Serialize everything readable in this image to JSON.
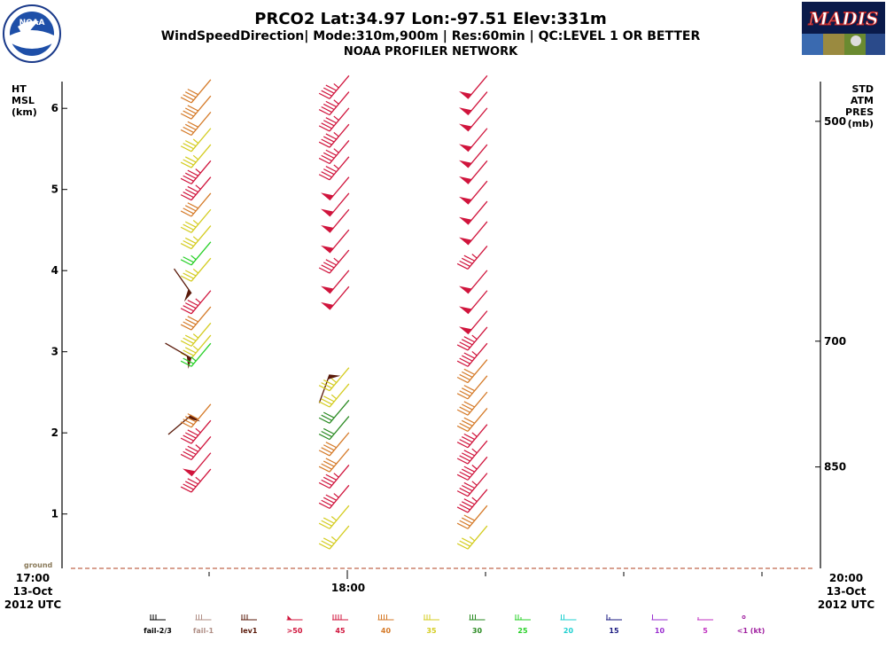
{
  "header": {
    "title": "PRCO2  Lat:34.97 Lon:-97.51 Elev:331m",
    "subtitle": "WindSpeedDirection| Mode:310m,900m | Res:60min |  QC:LEVEL 1 OR BETTER",
    "network": "NOAA PROFILER NETWORK",
    "noaa_logo_text": "NOAA",
    "madis_logo_text": "MADIS"
  },
  "chart_data": {
    "type": "wind-barbs",
    "left_axis": {
      "label_lines": [
        "HT",
        "MSL",
        "(km)"
      ],
      "ticks": [
        1,
        2,
        3,
        4,
        5,
        6
      ],
      "range_km": [
        0.33,
        6.35
      ]
    },
    "right_axis": {
      "label_lines": [
        "STD",
        "ATM",
        "PRES",
        "(mb)"
      ],
      "ticks": [
        {
          "label": "500",
          "height_km": 5.84
        },
        {
          "label": "700",
          "height_km": 3.13
        },
        {
          "label": "850",
          "height_km": 1.58
        }
      ]
    },
    "ground_label": "ground",
    "time_axis": {
      "start_lines": [
        "17:00",
        "13-Oct",
        "2012 UTC"
      ],
      "end_lines": [
        "20:00",
        "13-Oct",
        "2012 UTC"
      ],
      "middle_label": "18:00",
      "range_hours": [
        17.0,
        20.0
      ],
      "minor_ticks_hours": [
        17.5,
        18.5,
        19.0,
        19.5
      ]
    },
    "profiles": [
      {
        "time": 17.5,
        "barbs": [
          {
            "h": 6.2,
            "speed": 40
          },
          {
            "h": 6.0,
            "speed": 40
          },
          {
            "h": 5.8,
            "speed": 40
          },
          {
            "h": 5.6,
            "speed": 35
          },
          {
            "h": 5.4,
            "speed": 35
          },
          {
            "h": 5.2,
            "speed": 45
          },
          {
            "h": 5.0,
            "speed": 45
          },
          {
            "h": 4.8,
            "speed": 40
          },
          {
            "h": 4.6,
            "speed": 35
          },
          {
            "h": 4.4,
            "speed": 35
          },
          {
            "h": 4.2,
            "speed": 25
          },
          {
            "h": 4.0,
            "speed": 35
          },
          {
            "h": 3.85,
            "speed": 0,
            "cat": "lev1",
            "dir": 325
          },
          {
            "h": 3.6,
            "speed": 45
          },
          {
            "h": 3.4,
            "speed": 40
          },
          {
            "h": 3.2,
            "speed": 35
          },
          {
            "h": 3.05,
            "speed": 35
          },
          {
            "h": 3.05,
            "speed": 0,
            "cat": "lev1",
            "dir": 300
          },
          {
            "h": 2.95,
            "speed": 25
          },
          {
            "h": 2.35,
            "speed": 0,
            "cat": "lev1",
            "dir": 230
          },
          {
            "h": 2.2,
            "speed": 40
          },
          {
            "h": 2.0,
            "speed": 45
          },
          {
            "h": 1.8,
            "speed": 45
          },
          {
            "h": 1.6,
            "speed": 50
          },
          {
            "h": 1.4,
            "speed": 45
          }
        ]
      },
      {
        "time": 18.0,
        "barbs": [
          {
            "h": 6.25,
            "speed": 45
          },
          {
            "h": 6.05,
            "speed": 45
          },
          {
            "h": 5.85,
            "speed": 45
          },
          {
            "h": 5.65,
            "speed": 45
          },
          {
            "h": 5.45,
            "speed": 45
          },
          {
            "h": 5.25,
            "speed": 45
          },
          {
            "h": 5.0,
            "speed": 50
          },
          {
            "h": 4.8,
            "speed": 50
          },
          {
            "h": 4.6,
            "speed": 50
          },
          {
            "h": 4.35,
            "speed": 50
          },
          {
            "h": 4.1,
            "speed": 45
          },
          {
            "h": 3.85,
            "speed": 50
          },
          {
            "h": 3.65,
            "speed": 50
          },
          {
            "h": 2.85,
            "speed": 0,
            "cat": "lev1",
            "dir": 200
          },
          {
            "h": 2.65,
            "speed": 35
          },
          {
            "h": 2.45,
            "speed": 35
          },
          {
            "h": 2.25,
            "speed": 30
          },
          {
            "h": 2.05,
            "speed": 30
          },
          {
            "h": 1.85,
            "speed": 40
          },
          {
            "h": 1.65,
            "speed": 40
          },
          {
            "h": 1.45,
            "speed": 45
          },
          {
            "h": 1.2,
            "speed": 45
          },
          {
            "h": 0.95,
            "speed": 35
          },
          {
            "h": 0.7,
            "speed": 35
          }
        ]
      },
      {
        "time": 18.5,
        "barbs": [
          {
            "h": 6.25,
            "speed": 50
          },
          {
            "h": 6.05,
            "speed": 50
          },
          {
            "h": 5.85,
            "speed": 50
          },
          {
            "h": 5.6,
            "speed": 50
          },
          {
            "h": 5.4,
            "speed": 50
          },
          {
            "h": 5.2,
            "speed": 50
          },
          {
            "h": 4.95,
            "speed": 50
          },
          {
            "h": 4.7,
            "speed": 50
          },
          {
            "h": 4.45,
            "speed": 50
          },
          {
            "h": 4.15,
            "speed": 45
          },
          {
            "h": 3.85,
            "speed": 50
          },
          {
            "h": 3.6,
            "speed": 50
          },
          {
            "h": 3.35,
            "speed": 50
          },
          {
            "h": 3.15,
            "speed": 45
          },
          {
            "h": 2.95,
            "speed": 45
          },
          {
            "h": 2.75,
            "speed": 40
          },
          {
            "h": 2.55,
            "speed": 40
          },
          {
            "h": 2.35,
            "speed": 40
          },
          {
            "h": 2.15,
            "speed": 40
          },
          {
            "h": 1.95,
            "speed": 45
          },
          {
            "h": 1.75,
            "speed": 45
          },
          {
            "h": 1.55,
            "speed": 45
          },
          {
            "h": 1.35,
            "speed": 45
          },
          {
            "h": 1.15,
            "speed": 45
          },
          {
            "h": 0.95,
            "speed": 40
          },
          {
            "h": 0.7,
            "speed": 35
          }
        ]
      }
    ]
  },
  "legend": [
    {
      "label": "fail-2/3",
      "color": "#000000",
      "sym": "f3"
    },
    {
      "label": "fail-1",
      "color": "#b08f86",
      "sym": "f3"
    },
    {
      "label": "lev1",
      "color": "#5a1a0a",
      "sym": "f3"
    },
    {
      "label": ">50",
      "color": "#d0143c",
      "sym": "pen"
    },
    {
      "label": "45",
      "color": "#d0143c",
      "sym": "f4"
    },
    {
      "label": "40",
      "color": "#d57a28",
      "sym": "f4"
    },
    {
      "label": "35",
      "color": "#d4cc20",
      "sym": "f3"
    },
    {
      "label": "30",
      "color": "#2a8a22",
      "sym": "f3"
    },
    {
      "label": "25",
      "color": "#28d028",
      "sym": "f2h"
    },
    {
      "label": "20",
      "color": "#20d0d0",
      "sym": "f2"
    },
    {
      "label": "15",
      "color": "#1a1a80",
      "sym": "f1h"
    },
    {
      "label": "10",
      "color": "#9a30d0",
      "sym": "f1"
    },
    {
      "label": "5",
      "color": "#c030c0",
      "sym": "h"
    },
    {
      "label": "<1 (kt)",
      "color": "#a020a0",
      "sym": "dot"
    }
  ],
  "speed_colors": {
    "lev1": "#5a1a0a",
    "50": "#d0143c",
    "45": "#d0143c",
    "40": "#d57a28",
    "35": "#d4cc20",
    "30": "#2a8a22",
    "25": "#28d028",
    "20": "#20d0d0",
    "15": "#1a1a80",
    "10": "#9a30d0",
    "5": "#c030c0",
    "0": "#a020a0"
  }
}
